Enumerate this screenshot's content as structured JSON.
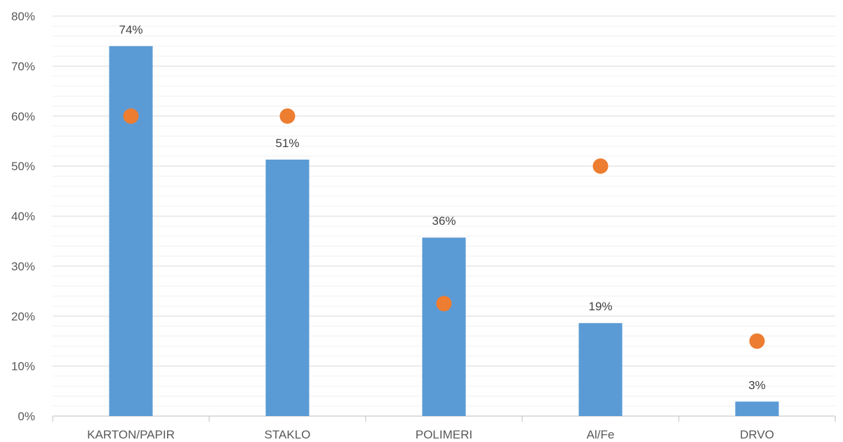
{
  "chart_data": {
    "type": "bar",
    "categories": [
      "KARTON/PAPIR",
      "STAKLO",
      "POLIMERI",
      "Al/Fe",
      "DRVO"
    ],
    "series": [
      {
        "type": "bar",
        "values": [
          74,
          51.3,
          35.7,
          18.6,
          2.9
        ],
        "data_labels": [
          "74%",
          "51%",
          "36%",
          "19%",
          "3%"
        ],
        "color": "#5b9bd5"
      },
      {
        "type": "scatter",
        "values": [
          60,
          60,
          22.5,
          50,
          15
        ],
        "color": "#ed7d31"
      }
    ],
    "y_ticks": [
      "0%",
      "10%",
      "20%",
      "30%",
      "40%",
      "50%",
      "60%",
      "70%",
      "80%"
    ],
    "ylim": [
      0,
      80
    ],
    "grid": true,
    "minor_grid": true,
    "legend": "none",
    "title": "",
    "xlabel": "",
    "ylabel": ""
  }
}
